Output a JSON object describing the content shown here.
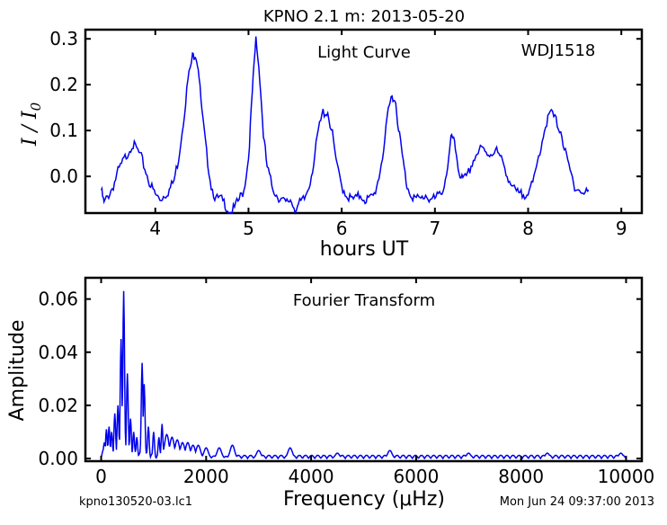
{
  "page": {
    "title": "KPNO 2.1 m:  2013-05-20",
    "filename": "kpno130520-03.lc1",
    "timestamp": "Mon Jun 24 09:37:00 2013"
  },
  "colors": {
    "series": "#0000ee",
    "axes": "#000000",
    "background": "#ffffff"
  },
  "chart_data": [
    {
      "type": "line",
      "title": "KPNO 2.1 m:  2013-05-20",
      "annotation_left": "Light Curve",
      "annotation_right": "WDJ1518",
      "xlabel": "hours UT",
      "ylabel": "I / I0",
      "xlim": [
        3.25,
        9.22
      ],
      "ylim": [
        -0.08,
        0.32
      ],
      "xticks": [
        4,
        5,
        6,
        7,
        8,
        9
      ],
      "xtick_labels": [
        "4",
        "5",
        "6",
        "7",
        "8",
        "9"
      ],
      "yticks": [
        0.0,
        0.1,
        0.2,
        0.3
      ],
      "ytick_labels": [
        "0.0",
        "0.1",
        "0.2",
        "0.3"
      ],
      "grid": false,
      "series": [
        {
          "values_note_x_hours": true,
          "x": [
            3.42,
            3.45,
            3.5,
            3.55,
            3.6,
            3.65,
            3.7,
            3.75,
            3.8,
            3.85,
            3.9,
            3.95,
            4.0,
            4.05,
            4.1,
            4.15,
            4.2,
            4.25,
            4.3,
            4.35,
            4.4,
            4.43,
            4.46,
            4.5,
            4.55,
            4.6,
            4.65,
            4.7,
            4.75,
            4.8,
            4.85,
            4.9,
            4.95,
            5.0,
            5.04,
            5.08,
            5.12,
            5.16,
            5.2,
            5.25,
            5.3,
            5.35,
            5.4,
            5.45,
            5.5,
            5.55,
            5.6,
            5.65,
            5.7,
            5.75,
            5.8,
            5.85,
            5.9,
            5.95,
            6.0,
            6.05,
            6.1,
            6.15,
            6.2,
            6.25,
            6.3,
            6.35,
            6.4,
            6.45,
            6.5,
            6.54,
            6.58,
            6.62,
            6.66,
            6.7,
            6.75,
            6.8,
            6.85,
            6.9,
            6.95,
            7.0,
            7.05,
            7.1,
            7.15,
            7.18,
            7.22,
            7.26,
            7.3,
            7.35,
            7.4,
            7.45,
            7.5,
            7.55,
            7.6,
            7.65,
            7.7,
            7.75,
            7.8,
            7.85,
            7.9,
            7.95,
            8.0,
            8.05,
            8.1,
            8.15,
            8.2,
            8.25,
            8.3,
            8.35,
            8.4,
            8.45,
            8.5,
            8.55,
            8.6,
            8.65
          ],
          "y": [
            -0.03,
            -0.06,
            -0.04,
            -0.02,
            0.01,
            0.03,
            0.05,
            0.07,
            0.06,
            0.04,
            0.01,
            -0.02,
            -0.04,
            -0.05,
            -0.04,
            -0.03,
            -0.01,
            0.04,
            0.12,
            0.21,
            0.26,
            0.27,
            0.24,
            0.14,
            0.05,
            -0.02,
            -0.05,
            -0.05,
            -0.06,
            -0.08,
            -0.07,
            -0.05,
            -0.03,
            0.04,
            0.18,
            0.3,
            0.22,
            0.09,
            0.02,
            -0.02,
            -0.04,
            -0.05,
            -0.06,
            -0.05,
            -0.07,
            -0.06,
            -0.05,
            -0.02,
            0.03,
            0.1,
            0.14,
            0.14,
            0.09,
            0.02,
            -0.02,
            -0.04,
            -0.05,
            -0.05,
            -0.04,
            -0.05,
            -0.05,
            -0.04,
            0.0,
            0.06,
            0.14,
            0.18,
            0.16,
            0.09,
            0.03,
            -0.02,
            -0.04,
            -0.05,
            -0.05,
            -0.04,
            -0.05,
            -0.05,
            -0.04,
            -0.02,
            0.04,
            0.09,
            0.06,
            0.01,
            -0.01,
            0.0,
            0.03,
            0.05,
            0.06,
            0.05,
            0.05,
            0.06,
            0.04,
            0.02,
            -0.01,
            -0.03,
            -0.04,
            -0.04,
            -0.03,
            -0.02,
            0.03,
            0.08,
            0.12,
            0.14,
            0.12,
            0.1,
            0.05,
            0.01,
            -0.02,
            -0.03,
            -0.04,
            -0.03
          ]
        }
      ]
    },
    {
      "type": "line",
      "annotation": "Fourier Transform",
      "xlabel": "Frequency (μHz)",
      "ylabel": "Amplitude",
      "xlim": [
        -300,
        10300
      ],
      "ylim": [
        -0.001,
        0.068
      ],
      "xticks": [
        0,
        2000,
        4000,
        6000,
        8000,
        10000
      ],
      "xtick_labels": [
        "0",
        "2000",
        "4000",
        "6000",
        "8000",
        "10000"
      ],
      "yticks": [
        0.0,
        0.02,
        0.04,
        0.06
      ],
      "ytick_labels": [
        "0.00",
        "0.02",
        "0.04",
        "0.06"
      ],
      "grid": false,
      "series": [
        {
          "peaks": [
            {
              "x": 60,
              "y": 0.006
            },
            {
              "x": 100,
              "y": 0.011
            },
            {
              "x": 150,
              "y": 0.012
            },
            {
              "x": 200,
              "y": 0.01
            },
            {
              "x": 260,
              "y": 0.017
            },
            {
              "x": 320,
              "y": 0.02
            },
            {
              "x": 380,
              "y": 0.045
            },
            {
              "x": 430,
              "y": 0.063
            },
            {
              "x": 500,
              "y": 0.032
            },
            {
              "x": 560,
              "y": 0.015
            },
            {
              "x": 620,
              "y": 0.01
            },
            {
              "x": 680,
              "y": 0.008
            },
            {
              "x": 780,
              "y": 0.036
            },
            {
              "x": 820,
              "y": 0.028
            },
            {
              "x": 900,
              "y": 0.012
            },
            {
              "x": 1000,
              "y": 0.01
            },
            {
              "x": 1100,
              "y": 0.008
            },
            {
              "x": 1160,
              "y": 0.013
            },
            {
              "x": 1250,
              "y": 0.009
            },
            {
              "x": 1350,
              "y": 0.008
            },
            {
              "x": 1450,
              "y": 0.007
            },
            {
              "x": 1550,
              "y": 0.006
            },
            {
              "x": 1650,
              "y": 0.006
            },
            {
              "x": 1750,
              "y": 0.005
            },
            {
              "x": 1850,
              "y": 0.005
            },
            {
              "x": 2000,
              "y": 0.004
            },
            {
              "x": 2250,
              "y": 0.004
            },
            {
              "x": 2500,
              "y": 0.005
            },
            {
              "x": 3000,
              "y": 0.003
            },
            {
              "x": 3600,
              "y": 0.004
            },
            {
              "x": 4500,
              "y": 0.002
            },
            {
              "x": 5500,
              "y": 0.003
            },
            {
              "x": 7000,
              "y": 0.002
            },
            {
              "x": 8500,
              "y": 0.002
            },
            {
              "x": 9900,
              "y": 0.002
            }
          ]
        }
      ]
    }
  ]
}
